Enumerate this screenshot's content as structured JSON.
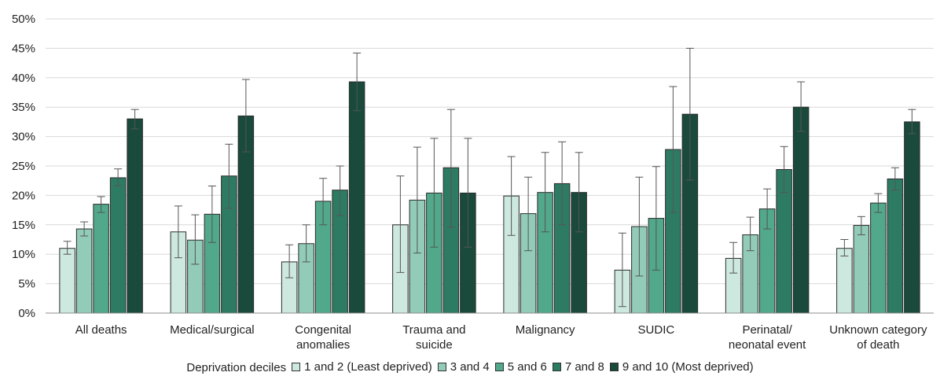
{
  "chart_data": {
    "type": "bar",
    "title": "",
    "xlabel": "",
    "ylabel": "",
    "ylim": [
      0,
      50
    ],
    "y_ticks": [
      "0%",
      "5%",
      "10%",
      "15%",
      "20%",
      "25%",
      "30%",
      "35%",
      "40%",
      "45%",
      "50%"
    ],
    "grid": true,
    "legend_position": "bottom",
    "legend_title": "Deprivation deciles",
    "error_bars": true,
    "categories": [
      [
        "All deaths"
      ],
      [
        "Medical/surgical"
      ],
      [
        "Congenital",
        "anomalies"
      ],
      [
        "Trauma and",
        "suicide"
      ],
      [
        "Malignancy"
      ],
      [
        "SUDIC"
      ],
      [
        "Perinatal/",
        "neonatal event"
      ],
      [
        "Unknown category",
        "of death"
      ]
    ],
    "series": [
      {
        "name": "1 and 2 (Least deprived)",
        "color": "#cde8df",
        "values": [
          11.0,
          13.8,
          8.7,
          15.0,
          19.9,
          7.3,
          9.3,
          11.0
        ],
        "error_low": [
          10.0,
          9.4,
          6.0,
          6.9,
          13.2,
          1.1,
          6.8,
          9.7
        ],
        "error_high": [
          12.2,
          18.2,
          11.6,
          23.3,
          26.6,
          13.6,
          12.0,
          12.5
        ]
      },
      {
        "name": "3 and 4",
        "color": "#92ccb8",
        "values": [
          14.3,
          12.4,
          11.8,
          19.2,
          16.9,
          14.7,
          13.3,
          14.9
        ],
        "error_low": [
          13.1,
          8.3,
          8.7,
          10.2,
          10.6,
          6.3,
          10.6,
          13.3
        ],
        "error_high": [
          15.5,
          16.7,
          15.0,
          28.2,
          23.1,
          23.1,
          16.3,
          16.4
        ]
      },
      {
        "name": "5 and 6",
        "color": "#52a88a",
        "values": [
          18.5,
          16.8,
          19.0,
          20.4,
          20.5,
          16.1,
          17.7,
          18.7
        ],
        "error_low": [
          17.1,
          12.0,
          15.0,
          11.2,
          13.8,
          7.3,
          14.3,
          17.1
        ],
        "error_high": [
          19.8,
          21.6,
          22.9,
          29.7,
          27.3,
          24.9,
          21.1,
          20.3
        ]
      },
      {
        "name": "7 and 8",
        "color": "#2e7b63",
        "values": [
          23.0,
          23.3,
          20.9,
          24.7,
          22.0,
          27.8,
          24.4,
          22.8
        ],
        "error_low": [
          21.6,
          17.8,
          16.6,
          14.6,
          15.0,
          17.1,
          20.5,
          20.9
        ],
        "error_high": [
          24.5,
          28.7,
          25.0,
          34.6,
          29.1,
          38.5,
          28.3,
          24.7
        ]
      },
      {
        "name": "9 and 10 (Most deprived)",
        "color": "#1a4a3c",
        "values": [
          33.0,
          33.5,
          39.3,
          20.4,
          20.5,
          33.8,
          35.0,
          32.5
        ],
        "error_low": [
          31.3,
          27.4,
          34.4,
          11.2,
          13.8,
          22.6,
          30.9,
          30.5
        ],
        "error_high": [
          34.6,
          39.7,
          44.2,
          29.7,
          27.3,
          45.0,
          39.3,
          34.6
        ]
      }
    ]
  }
}
